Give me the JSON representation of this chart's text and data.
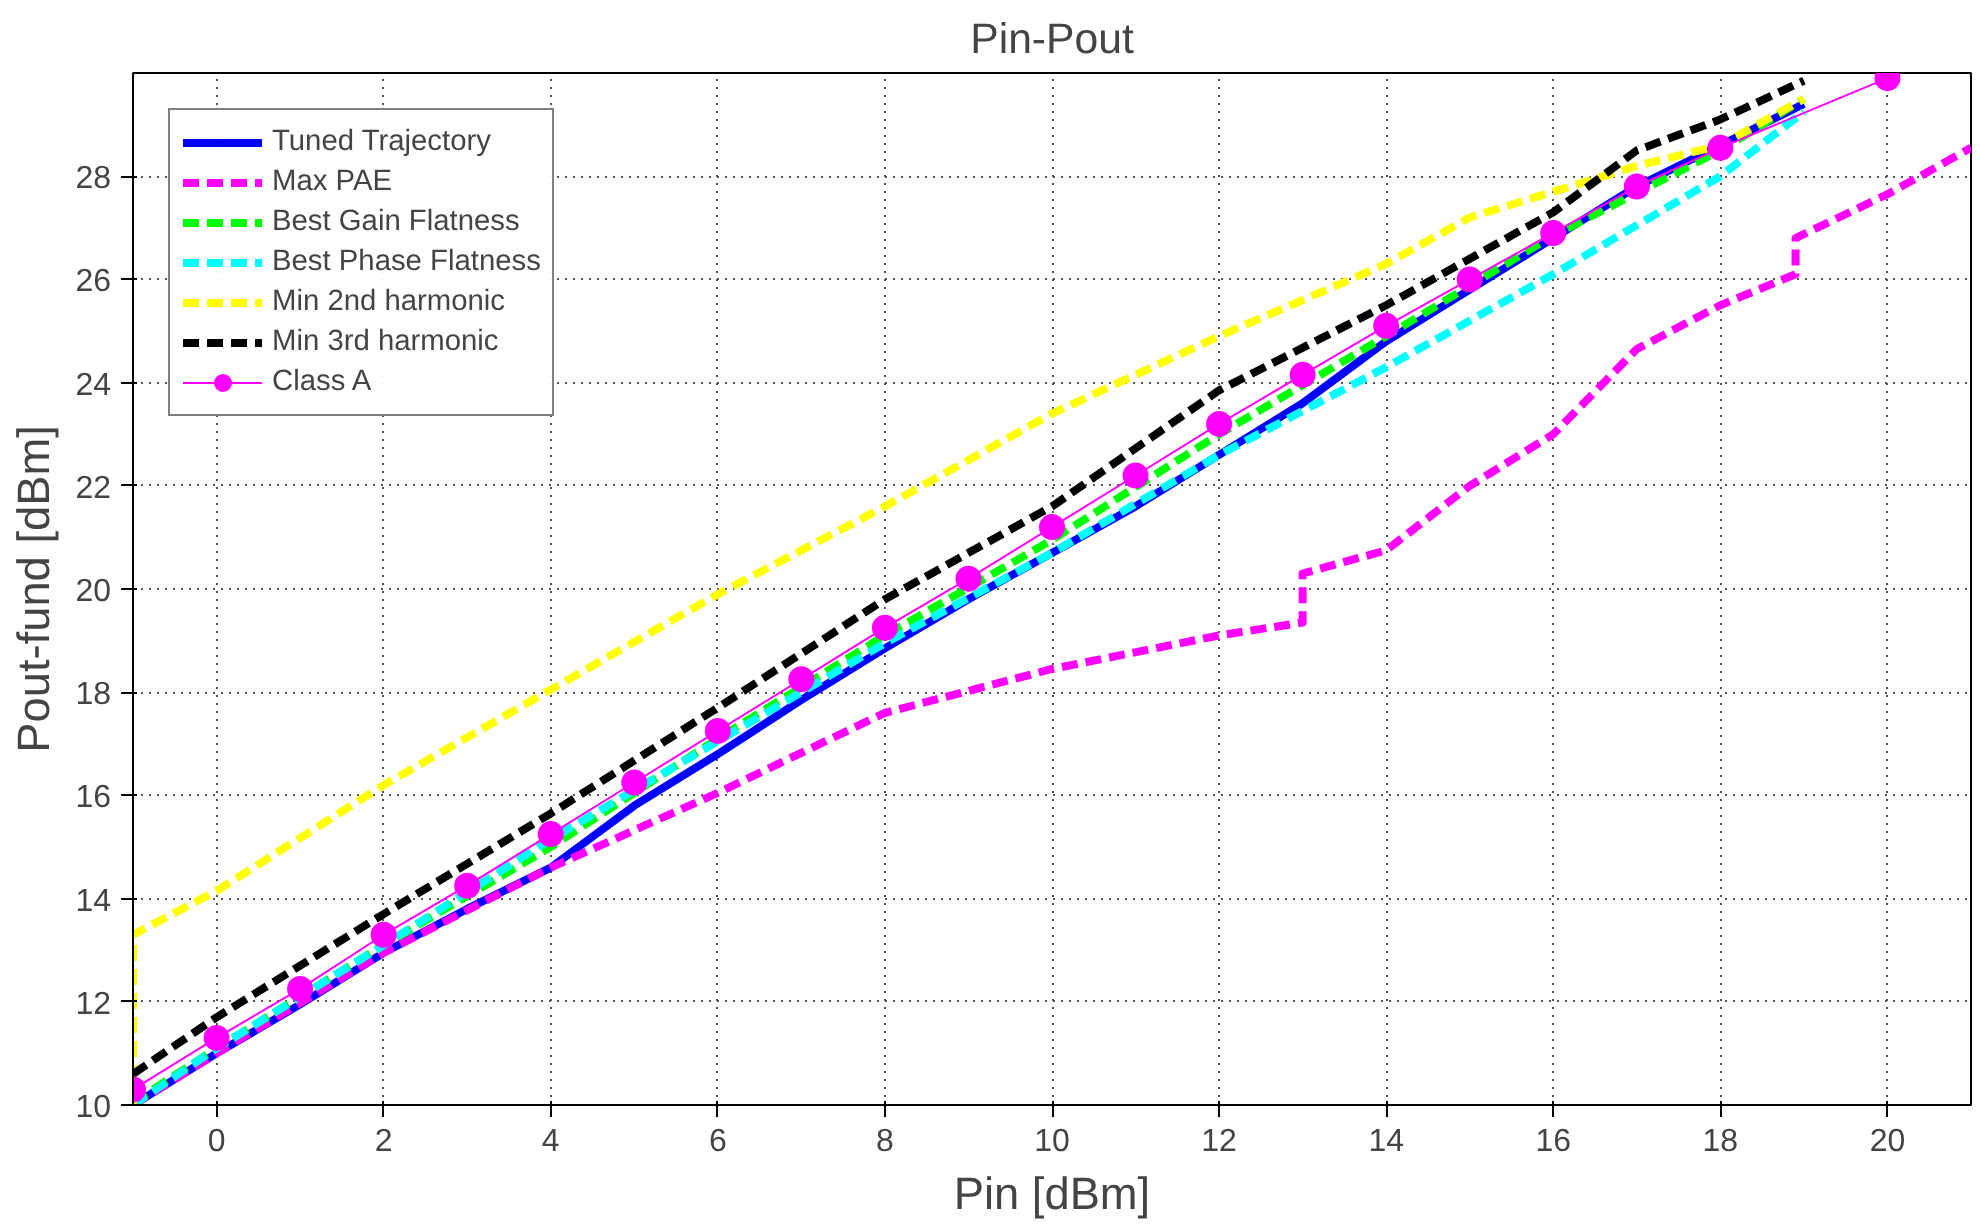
{
  "chart_data": {
    "type": "line",
    "title": "Pin-Pout",
    "xlabel": "Pin [dBm]",
    "ylabel": "Pout-fund [dBm]",
    "xlim": [
      -1,
      21
    ],
    "ylim": [
      10,
      30
    ],
    "xticks": [
      0,
      2,
      4,
      6,
      8,
      10,
      12,
      14,
      16,
      18,
      20
    ],
    "yticks": [
      10,
      12,
      14,
      16,
      18,
      20,
      22,
      24,
      26,
      28
    ],
    "grid": true,
    "legend": "top left",
    "series": [
      {
        "name": "Tuned Trajectory",
        "color": "#0000ff",
        "line_style": "solid",
        "marker": "none",
        "x": [
          -1,
          0,
          1,
          2,
          3,
          4,
          5,
          6,
          7,
          8,
          9,
          10,
          11,
          12,
          13,
          14,
          15,
          16,
          17,
          18,
          19
        ],
        "values": [
          10.0,
          11.0,
          11.95,
          12.95,
          13.8,
          14.6,
          15.8,
          16.8,
          17.85,
          18.85,
          19.8,
          20.7,
          21.6,
          22.6,
          23.6,
          24.8,
          25.8,
          26.8,
          27.8,
          28.6,
          29.4
        ]
      },
      {
        "name": "Max PAE",
        "color": "#ff00ff",
        "line_style": "dashed",
        "marker": "none",
        "x": [
          -1,
          0,
          2,
          4,
          6,
          8,
          10,
          12,
          13,
          13,
          14,
          15,
          16,
          17,
          18,
          18.9,
          18.9,
          20,
          21
        ],
        "values": [
          10.0,
          11.0,
          12.95,
          14.6,
          16.05,
          17.6,
          18.45,
          19.1,
          19.35,
          20.3,
          20.75,
          22.0,
          23.0,
          24.65,
          25.5,
          26.1,
          26.8,
          27.65,
          28.55
        ]
      },
      {
        "name": "Best Gain Flatness",
        "color": "#00ff00",
        "line_style": "dashed",
        "marker": "none",
        "x": [
          -1,
          0,
          2,
          4,
          6,
          8,
          10,
          12,
          14,
          16,
          18,
          19
        ],
        "values": [
          10.05,
          11.1,
          13.1,
          15.0,
          17.1,
          19.1,
          20.95,
          23.0,
          24.9,
          26.85,
          28.5,
          29.5
        ]
      },
      {
        "name": "Best Phase Flatness",
        "color": "#00ffff",
        "line_style": "dashed",
        "marker": "none",
        "x": [
          -1,
          0,
          2,
          4,
          6,
          8,
          10,
          12,
          14,
          16,
          18,
          19
        ],
        "values": [
          10.0,
          11.1,
          13.1,
          15.15,
          17.05,
          18.95,
          20.7,
          22.6,
          24.3,
          26.1,
          28.0,
          29.25
        ]
      },
      {
        "name": "Min 2nd harmonic",
        "color": "#ffff00",
        "line_style": "dashed",
        "marker": "none",
        "x": [
          -1,
          -1,
          0,
          2,
          4,
          6,
          8,
          10,
          12,
          14,
          15,
          16,
          17,
          18,
          19
        ],
        "values": [
          10.0,
          13.3,
          14.15,
          16.2,
          18.05,
          19.9,
          21.6,
          23.4,
          24.9,
          26.3,
          27.2,
          27.7,
          28.2,
          28.6,
          29.5
        ]
      },
      {
        "name": "Min 3rd harmonic",
        "color": "#000000",
        "line_style": "dashed",
        "marker": "none",
        "x": [
          -1,
          0,
          2,
          4,
          6,
          8,
          10,
          12,
          14,
          16,
          17,
          18,
          19
        ],
        "values": [
          10.6,
          11.7,
          13.7,
          15.65,
          17.7,
          19.8,
          21.6,
          23.85,
          25.5,
          27.3,
          28.5,
          29.1,
          29.85
        ]
      },
      {
        "name": "Class A",
        "color": "#ff00ff",
        "line_style": "solid",
        "marker": "circle",
        "x": [
          -1,
          0,
          1,
          2,
          3,
          4,
          5,
          6,
          7,
          8,
          9,
          10,
          11,
          12,
          13,
          14,
          15,
          16,
          17,
          18,
          20
        ],
        "values": [
          10.3,
          11.3,
          12.25,
          13.3,
          14.25,
          15.25,
          16.25,
          17.25,
          18.25,
          19.25,
          20.2,
          21.2,
          22.2,
          23.2,
          24.15,
          25.1,
          26.0,
          26.9,
          27.8,
          28.55,
          29.9
        ]
      }
    ]
  }
}
